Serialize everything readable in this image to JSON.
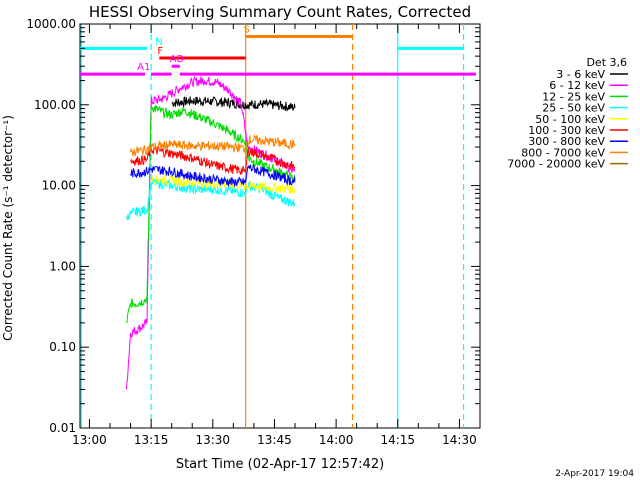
{
  "chart_data": {
    "type": "line",
    "title": "HESSI Observing Summary Count Rates, Corrected",
    "xlabel": "Start Time (02-Apr-17 12:57:42)",
    "ylabel": "Corrected Count Rate (s⁻¹ detector⁻¹)",
    "y_scale": "log",
    "ylim": [
      0.01,
      1000
    ],
    "xlim": [
      "12:57:42",
      "14:35:00"
    ],
    "x_tick_labels": [
      "13:00",
      "13:15",
      "13:30",
      "13:45",
      "14:00",
      "14:15",
      "14:30"
    ],
    "y_tick_labels": [
      "0.01",
      "0.10",
      "1.00",
      "10.00",
      "100.00",
      "1000.00"
    ],
    "legend_title": "Det 3,6",
    "legend_position": "right",
    "footer": "2-Apr-2017 19:04",
    "series": [
      {
        "name": "3 - 6 keV",
        "color": "#000000",
        "x": [
          "13:20:00",
          "13:25:00",
          "13:30:00",
          "13:35:00",
          "13:38:00",
          "13:42:00",
          "13:47:00",
          "13:50:00"
        ],
        "values": [
          105,
          112,
          110,
          105,
          100,
          102,
          97,
          92
        ]
      },
      {
        "name": "6 - 12 keV",
        "color": "#ff00ff",
        "x": [
          "13:09:00",
          "13:10:00",
          "13:12:00",
          "13:14:00",
          "13:15:00",
          "13:18:00",
          "13:22:00",
          "13:25:00",
          "13:28:00",
          "13:31:00",
          "13:34:00",
          "13:37:00",
          "13:38:30",
          "13:42:00",
          "13:46:00",
          "13:50:00"
        ],
        "values": [
          0.03,
          0.15,
          0.17,
          0.2,
          110,
          120,
          160,
          190,
          200,
          190,
          150,
          100,
          30,
          25,
          20,
          15
        ]
      },
      {
        "name": "12 - 25 keV",
        "color": "#00dd00",
        "x": [
          "13:09:00",
          "13:10:00",
          "13:12:00",
          "13:14:00",
          "13:15:00",
          "13:18:00",
          "13:20:00",
          "13:23:00",
          "13:27:00",
          "13:30:00",
          "13:33:00",
          "13:36:00",
          "13:38:00",
          "13:38:30",
          "13:42:00",
          "13:46:00",
          "13:50:00"
        ],
        "values": [
          0.2,
          0.35,
          0.35,
          0.4,
          95,
          80,
          75,
          85,
          70,
          60,
          50,
          40,
          35,
          22,
          18,
          15,
          12
        ]
      },
      {
        "name": "25 - 50 keV",
        "color": "#00ffff",
        "x": [
          "13:09:00",
          "13:10:00",
          "13:12:00",
          "13:14:00",
          "13:15:00",
          "13:20:00",
          "13:25:00",
          "13:30:00",
          "13:35:00",
          "13:38:00",
          "13:38:30",
          "13:42:00",
          "13:46:00",
          "13:50:00"
        ],
        "values": [
          4,
          4.5,
          4.8,
          5.0,
          11,
          10,
          9,
          9,
          8.5,
          8,
          10,
          9,
          7,
          6
        ]
      },
      {
        "name": "50 - 100 keV",
        "color": "#ffff00",
        "x": [
          "13:15:00",
          "13:25:00",
          "13:38:00",
          "13:50:00"
        ],
        "values": [
          12,
          11,
          10,
          9
        ]
      },
      {
        "name": "100 - 300 keV",
        "color": "#ff0000",
        "x": [
          "13:10:00",
          "13:14:00",
          "13:15:00",
          "13:20:00",
          "13:25:00",
          "13:30:00",
          "13:35:00",
          "13:38:00",
          "13:38:30",
          "13:42:00",
          "13:46:00",
          "13:50:00"
        ],
        "values": [
          20,
          21,
          28,
          25,
          22,
          18,
          16,
          15,
          27,
          24,
          20,
          17
        ]
      },
      {
        "name": "300 - 800 keV",
        "color": "#0000ff",
        "x": [
          "13:10:00",
          "13:14:00",
          "13:15:00",
          "13:20:00",
          "13:25:00",
          "13:30:00",
          "13:35:00",
          "13:38:00",
          "13:38:30",
          "13:42:00",
          "13:46:00",
          "13:50:00"
        ],
        "values": [
          14,
          15,
          16,
          15,
          13,
          12,
          11,
          11,
          17,
          15,
          13,
          11
        ]
      },
      {
        "name": "800 - 7000 keV",
        "color": "#ff8000",
        "x": [
          "13:10:00",
          "13:14:00",
          "13:15:00",
          "13:20:00",
          "13:25:00",
          "13:30:00",
          "13:35:00",
          "13:38:00",
          "13:38:30",
          "13:42:00",
          "13:46:00",
          "13:50:00"
        ],
        "values": [
          26,
          28,
          30,
          32,
          31,
          31,
          30,
          29,
          37,
          36,
          34,
          32
        ]
      },
      {
        "name": "7000 - 20000 keV",
        "color": "#996600",
        "x": [],
        "values": []
      }
    ],
    "annotations": [
      {
        "label": "N",
        "color": "#00ffff",
        "segments": [
          [
            "12:57:42",
            "13:14:00"
          ],
          [
            "14:15:00",
            "14:31:00"
          ]
        ],
        "level": 500
      },
      {
        "label": "F",
        "color": "#ff0000",
        "segments": [
          [
            "13:17:00",
            "13:38:00"
          ]
        ],
        "level": 380
      },
      {
        "label": "S",
        "color": "#ff8000",
        "segments": [
          [
            "13:38:00",
            "14:04:00"
          ]
        ],
        "level": 700
      },
      {
        "label": "AD",
        "color": "#ff00ff",
        "segments": [
          [
            "13:20:00",
            "13:22:00"
          ]
        ],
        "level": 300
      },
      {
        "label": "A1",
        "color": "#ff00ff",
        "segments": [
          [
            "12:57:42",
            "13:13:30"
          ],
          [
            "13:15:00",
            "13:20:00"
          ],
          [
            "13:22:00",
            "14:34:00"
          ]
        ],
        "level": 240
      }
    ],
    "vertical_lines": [
      {
        "x": "12:58:00",
        "color": "#00ffff",
        "style": "solid"
      },
      {
        "x": "13:15:00",
        "color": "#00ffff",
        "style": "dashed"
      },
      {
        "x": "13:38:00",
        "color": "#ff8000",
        "style": "solid"
      },
      {
        "x": "14:04:00",
        "color": "#ff8000",
        "style": "dashed"
      },
      {
        "x": "14:15:00",
        "color": "#00ffff",
        "style": "solid"
      },
      {
        "x": "14:31:00",
        "color": "#00ffff",
        "style": "dashed"
      }
    ]
  }
}
